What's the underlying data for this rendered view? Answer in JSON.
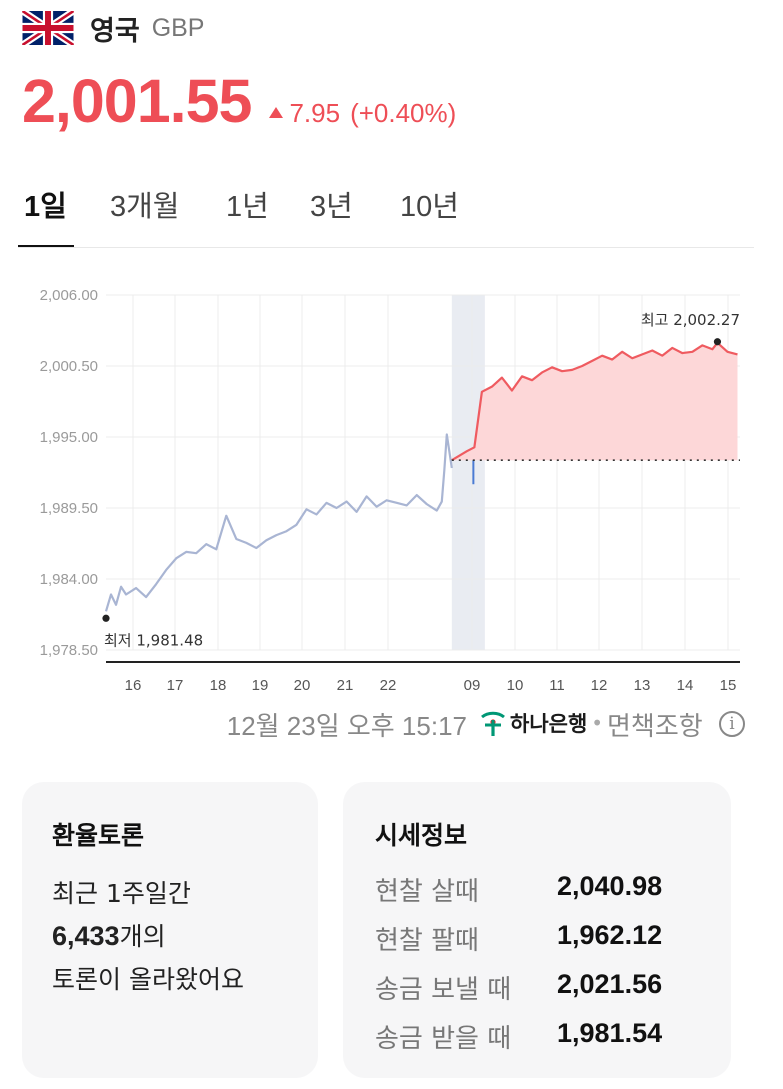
{
  "header": {
    "country": "영국",
    "currency": "GBP",
    "flag": "uk-flag-icon"
  },
  "quote": {
    "price": "2,001.55",
    "change": "7.95",
    "change_pct": "(+0.40%)",
    "color": "#ee4e56"
  },
  "tabs": [
    {
      "label": "1일",
      "active": true
    },
    {
      "label": "3개월",
      "active": false
    },
    {
      "label": "1년",
      "active": false
    },
    {
      "label": "3년",
      "active": false
    },
    {
      "label": "10년",
      "active": false
    }
  ],
  "chart_data": {
    "type": "line",
    "x_tick_labels": [
      "16",
      "17",
      "18",
      "19",
      "20",
      "21",
      "22",
      "09",
      "10",
      "11",
      "12",
      "13",
      "14",
      "15"
    ],
    "y_tick_labels": [
      "2,006.00",
      "2,000.50",
      "1,995.00",
      "1,989.50",
      "1,984.00",
      "1,978.50"
    ],
    "ylim": [
      1978.5,
      2006.0
    ],
    "reference_line": 1993.2,
    "overnight_marker": "moon-icon",
    "min_label": "최저 1,981.48",
    "max_label": "최고 2,002.27",
    "series": [
      {
        "session": "previous",
        "color": "#a9b5d3",
        "x": [
          15.4,
          15.5,
          15.6,
          15.7,
          15.8,
          16.0,
          16.2,
          16.4,
          16.6,
          16.8,
          17.0,
          17.2,
          17.4,
          17.6,
          17.8,
          17.9,
          18.0,
          18.2,
          18.4,
          18.6,
          18.8,
          19.0,
          19.2,
          19.4,
          19.6,
          19.8,
          20.0,
          20.2,
          20.4,
          20.6,
          20.8,
          21.0,
          21.2,
          21.4,
          21.6,
          21.8,
          22.0,
          22.1,
          22.15,
          22.2,
          22.3
        ],
        "y": [
          1981.5,
          1982.8,
          1982.0,
          1983.4,
          1982.8,
          1983.3,
          1982.6,
          1983.6,
          1984.7,
          1985.6,
          1986.1,
          1986.0,
          1986.7,
          1986.3,
          1988.9,
          1988.0,
          1987.1,
          1986.8,
          1986.4,
          1987.0,
          1987.4,
          1987.7,
          1988.2,
          1989.4,
          1989.0,
          1989.9,
          1989.5,
          1990.0,
          1989.2,
          1990.4,
          1989.6,
          1990.1,
          1989.9,
          1989.7,
          1990.5,
          1989.8,
          1989.3,
          1990.0,
          1992.4,
          1995.2,
          1992.6
        ]
      },
      {
        "session": "current",
        "color": "#ef5b60",
        "fill": "#fdd7d8",
        "x": [
          22.3,
          22.6,
          22.75,
          22.9,
          23.1,
          23.3,
          23.5,
          23.7,
          23.9,
          24.1,
          24.3,
          24.5,
          24.7,
          24.9,
          25.1,
          25.3,
          25.5,
          25.7,
          25.9,
          26.1,
          26.3,
          26.5,
          26.7,
          26.9,
          27.1,
          27.3,
          27.5,
          27.6,
          27.8,
          28.0
        ],
        "y": [
          1993.2,
          1993.9,
          1994.2,
          1998.5,
          1998.9,
          1999.6,
          1998.6,
          1999.7,
          1999.4,
          2000.0,
          2000.4,
          2000.1,
          2000.2,
          2000.5,
          2000.9,
          2001.3,
          2001.0,
          2001.6,
          2001.1,
          2001.4,
          2001.7,
          2001.3,
          2001.9,
          2001.5,
          2001.6,
          2002.1,
          2001.8,
          2002.3,
          2001.6,
          2001.4
        ]
      }
    ]
  },
  "footer": {
    "updated": "12월 23일 오후 15:17",
    "bank_logo": "hana-bank-logo-icon",
    "bank_name": "하나은행",
    "separator": "•",
    "disclaimer": "면책조항",
    "info_icon": "info-icon",
    "info_glyph": "i"
  },
  "forum": {
    "title": "환율토론",
    "line1": "최근 1주일간",
    "count": "6,433",
    "count_suffix": "개의",
    "line3": "토론이 올라왔어요"
  },
  "market": {
    "title": "시세정보",
    "rows": [
      {
        "label": "현찰 살때",
        "value": "2,040.98"
      },
      {
        "label": "현찰 팔때",
        "value": "1,962.12"
      },
      {
        "label": "송금 보낼 때",
        "value": "2,021.56"
      },
      {
        "label": "송금 받을 때",
        "value": "1,981.54"
      }
    ]
  }
}
